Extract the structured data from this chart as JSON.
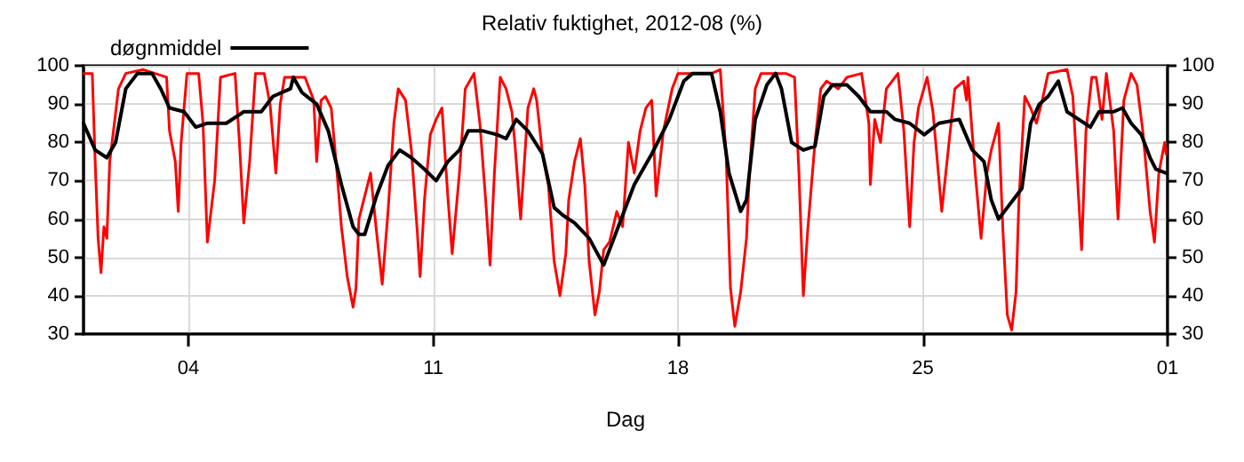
{
  "chart_data": {
    "type": "line",
    "title": "Relativ fuktighet, 2012-08 (%)",
    "xlabel": "Dag",
    "xlim": [
      "2012-08-01T00:00",
      "2012-09-01T00:00"
    ],
    "xticks": [
      {
        "value": "2012-08-04",
        "label": "04"
      },
      {
        "value": "2012-08-11",
        "label": "11"
      },
      {
        "value": "2012-08-18",
        "label": "18"
      },
      {
        "value": "2012-08-25",
        "label": "25"
      },
      {
        "value": "2012-09-01",
        "label": "01"
      }
    ],
    "ylim": [
      30,
      100
    ],
    "yticks": [
      30,
      40,
      50,
      60,
      70,
      80,
      90,
      100
    ],
    "y2lim": [
      30,
      100
    ],
    "y2ticks": [
      30,
      40,
      50,
      60,
      70,
      80,
      90,
      100
    ],
    "grid": true,
    "legend": "top left",
    "marker": "none",
    "line_style": "solid",
    "series": [
      {
        "color": "#ff0000",
        "x": [
          "2012-08-01T00:00",
          "2012-08-01T06:00",
          "2012-08-01T08:00",
          "2012-08-01T10:00",
          "2012-08-01T12:00",
          "2012-08-01T14:00",
          "2012-08-01T16:00",
          "2012-08-01T18:00",
          "2012-08-02T00:00",
          "2012-08-02T05:00",
          "2012-08-02T17:00",
          "2012-08-03T09:00",
          "2012-08-03T11:00",
          "2012-08-03T15:00",
          "2012-08-03T17:00",
          "2012-08-03T19:00",
          "2012-08-03T23:00",
          "2012-08-04T07:00",
          "2012-08-04T10:00",
          "2012-08-04T13:00",
          "2012-08-04T18:00",
          "2012-08-04T22:00",
          "2012-08-05T08:00",
          "2012-08-05T11:00",
          "2012-08-05T14:00",
          "2012-08-05T18:00",
          "2012-08-05T22:00",
          "2012-08-06T04:00",
          "2012-08-06T08:00",
          "2012-08-06T12:00",
          "2012-08-06T15:00",
          "2012-08-06T18:00",
          "2012-08-07T00:00",
          "2012-08-07T08:00",
          "2012-08-07T14:00",
          "2012-08-07T16:00",
          "2012-08-07T19:00",
          "2012-08-07T22:00",
          "2012-08-08T02:00",
          "2012-08-08T06:00",
          "2012-08-08T09:00",
          "2012-08-08T13:00",
          "2012-08-08T17:00",
          "2012-08-08T19:00",
          "2012-08-08T21:00",
          "2012-08-09T01:00",
          "2012-08-09T05:00",
          "2012-08-09T09:00",
          "2012-08-09T13:00",
          "2012-08-09T17:00",
          "2012-08-09T21:00",
          "2012-08-10T00:00",
          "2012-08-10T05:00",
          "2012-08-10T09:00",
          "2012-08-10T13:00",
          "2012-08-10T15:00",
          "2012-08-10T18:00",
          "2012-08-10T22:00",
          "2012-08-11T02:00",
          "2012-08-11T06:00",
          "2012-08-11T10:00",
          "2012-08-11T13:00",
          "2012-08-11T18:00",
          "2012-08-11T22:00",
          "2012-08-12T04:00",
          "2012-08-12T08:00",
          "2012-08-12T12:00",
          "2012-08-12T15:00",
          "2012-08-12T18:00",
          "2012-08-12T22:00",
          "2012-08-13T02:00",
          "2012-08-13T06:00",
          "2012-08-13T08:00",
          "2012-08-13T12:00",
          "2012-08-13T17:00",
          "2012-08-13T21:00",
          "2012-08-13T23:00",
          "2012-08-14T03:00",
          "2012-08-14T07:00",
          "2012-08-14T11:00",
          "2012-08-14T15:00",
          "2012-08-14T19:00",
          "2012-08-14T21:00",
          "2012-08-15T01:00",
          "2012-08-15T05:00",
          "2012-08-15T08:00",
          "2012-08-15T11:00",
          "2012-08-15T15:00",
          "2012-08-15T18:00",
          "2012-08-15T21:00",
          "2012-08-16T01:00",
          "2012-08-16T06:00",
          "2012-08-16T10:00",
          "2012-08-16T14:00",
          "2012-08-16T18:00",
          "2012-08-16T22:00",
          "2012-08-17T02:00",
          "2012-08-17T06:00",
          "2012-08-17T09:00",
          "2012-08-17T14:00",
          "2012-08-17T20:00",
          "2012-08-18T00:00",
          "2012-08-18T10:00",
          "2012-08-18T23:00",
          "2012-08-19T05:00",
          "2012-08-19T09:00",
          "2012-08-19T12:00",
          "2012-08-19T15:00",
          "2012-08-19T19:00",
          "2012-08-19T23:00",
          "2012-08-20T01:00",
          "2012-08-20T05:00",
          "2012-08-20T09:00",
          "2012-08-20T18:00",
          "2012-08-21T02:00",
          "2012-08-21T08:00",
          "2012-08-21T11:00",
          "2012-08-21T14:00",
          "2012-08-21T17:00",
          "2012-08-21T22:00",
          "2012-08-22T02:00",
          "2012-08-22T06:00",
          "2012-08-22T14:00",
          "2012-08-22T20:00",
          "2012-08-23T06:00",
          "2012-08-23T11:00",
          "2012-08-23T12:00",
          "2012-08-23T15:00",
          "2012-08-23T19:00",
          "2012-08-23T23:00",
          "2012-08-24T07:00",
          "2012-08-24T11:00",
          "2012-08-24T15:00",
          "2012-08-24T18:00",
          "2012-08-24T21:00",
          "2012-08-25T03:00",
          "2012-08-25T07:00",
          "2012-08-25T13:00",
          "2012-08-25T18:00",
          "2012-08-25T22:00",
          "2012-08-26T04:00",
          "2012-08-26T06:00",
          "2012-08-26T07:00",
          "2012-08-26T12:00",
          "2012-08-26T16:00",
          "2012-08-26T20:00",
          "2012-08-26T23:00",
          "2012-08-27T04:00",
          "2012-08-27T07:00",
          "2012-08-27T10:00",
          "2012-08-27T13:00",
          "2012-08-27T16:00",
          "2012-08-27T18:00",
          "2012-08-27T22:00",
          "2012-08-28T02:00",
          "2012-08-28T06:00",
          "2012-08-28T10:00",
          "2012-08-28T14:00",
          "2012-08-29T03:00",
          "2012-08-29T07:00",
          "2012-08-29T11:00",
          "2012-08-29T13:00",
          "2012-08-29T16:00",
          "2012-08-29T20:00",
          "2012-08-29T23:00",
          "2012-08-30T03:00",
          "2012-08-30T06:00",
          "2012-08-30T11:00",
          "2012-08-30T14:00",
          "2012-08-30T18:00",
          "2012-08-30T23:00",
          "2012-08-31T03:00",
          "2012-08-31T07:00",
          "2012-08-31T12:00",
          "2012-08-31T15:00",
          "2012-08-31T18:00",
          "2012-08-31T22:00",
          "2012-08-31T23:00"
        ],
        "values": [
          98,
          98,
          75,
          55,
          46,
          58,
          55,
          75,
          94,
          98,
          99,
          97,
          83,
          75,
          62,
          80,
          98,
          98,
          85,
          54,
          70,
          97,
          98,
          80,
          59,
          75,
          98,
          98,
          90,
          72,
          90,
          97,
          97,
          97,
          91,
          75,
          91,
          92,
          89,
          72,
          58,
          45,
          37,
          42,
          60,
          66,
          72,
          57,
          43,
          62,
          85,
          94,
          91,
          78,
          57,
          45,
          65,
          82,
          86,
          89,
          66,
          51,
          72,
          94,
          98,
          85,
          65,
          48,
          72,
          97,
          94,
          88,
          80,
          60,
          89,
          94,
          91,
          77,
          69,
          49,
          40,
          51,
          65,
          75,
          81,
          69,
          49,
          35,
          41,
          52,
          54,
          62,
          58,
          80,
          72,
          83,
          89,
          91,
          66,
          83,
          94,
          98,
          98,
          98,
          99,
          77,
          42,
          32,
          41,
          55,
          72,
          94,
          98,
          98,
          98,
          97,
          72,
          40,
          57,
          80,
          94,
          96,
          94,
          97,
          98,
          85,
          69,
          86,
          80,
          94,
          98,
          83,
          58,
          80,
          89,
          97,
          88,
          62,
          80,
          94,
          96,
          91,
          97,
          72,
          55,
          72,
          78,
          85,
          57,
          35,
          31,
          41,
          65,
          92,
          89,
          85,
          91,
          98,
          99,
          92,
          65,
          52,
          83,
          97,
          97,
          86,
          98,
          83,
          60,
          91,
          98,
          95,
          83,
          62,
          54,
          72,
          80,
          77
        ]
      },
      {
        "name": "døgnmiddel",
        "color": "#000000",
        "x": [
          "2012-08-01T00:00",
          "2012-08-01T08:00",
          "2012-08-01T16:00",
          "2012-08-01T22:00",
          "2012-08-02T05:00",
          "2012-08-02T13:00",
          "2012-08-02T23:00",
          "2012-08-03T05:00",
          "2012-08-03T11:00",
          "2012-08-03T21:00",
          "2012-08-04T05:00",
          "2012-08-04T13:00",
          "2012-08-05T02:00",
          "2012-08-05T14:00",
          "2012-08-06T02:00",
          "2012-08-06T10:00",
          "2012-08-06T22:00",
          "2012-08-07T00:00",
          "2012-08-07T06:00",
          "2012-08-07T16:00",
          "2012-08-08T00:00",
          "2012-08-08T09:00",
          "2012-08-08T17:00",
          "2012-08-08T21:00",
          "2012-08-09T01:00",
          "2012-08-09T09:00",
          "2012-08-09T17:00",
          "2012-08-10T01:00",
          "2012-08-10T09:00",
          "2012-08-10T18:00",
          "2012-08-11T02:00",
          "2012-08-11T10:00",
          "2012-08-11T18:00",
          "2012-08-12T00:00",
          "2012-08-12T10:00",
          "2012-08-12T20:00",
          "2012-08-13T02:00",
          "2012-08-13T09:00",
          "2012-08-13T17:00",
          "2012-08-14T03:00",
          "2012-08-14T11:00",
          "2012-08-14T17:00",
          "2012-08-15T01:00",
          "2012-08-15T11:00",
          "2012-08-15T21:00",
          "2012-08-16T06:00",
          "2012-08-16T18:00",
          "2012-08-17T06:00",
          "2012-08-17T18:00",
          "2012-08-18T04:00",
          "2012-08-18T10:00",
          "2012-08-18T23:00",
          "2012-08-19T05:00",
          "2012-08-19T11:00",
          "2012-08-19T19:00",
          "2012-08-19T23:00",
          "2012-08-20T05:00",
          "2012-08-20T13:00",
          "2012-08-20T19:00",
          "2012-08-20T23:00",
          "2012-08-21T06:00",
          "2012-08-21T14:00",
          "2012-08-21T22:00",
          "2012-08-22T04:00",
          "2012-08-22T10:00",
          "2012-08-22T20:00",
          "2012-08-23T04:00",
          "2012-08-23T12:00",
          "2012-08-23T23:00",
          "2012-08-24T05:00",
          "2012-08-24T15:00",
          "2012-08-25T01:00",
          "2012-08-25T11:00",
          "2012-08-26T01:00",
          "2012-08-26T10:00",
          "2012-08-26T18:00",
          "2012-08-26T23:00",
          "2012-08-27T04:00",
          "2012-08-27T10:00",
          "2012-08-27T16:00",
          "2012-08-27T20:00",
          "2012-08-28T02:00",
          "2012-08-28T08:00",
          "2012-08-28T14:00",
          "2012-08-28T21:00",
          "2012-08-29T03:00",
          "2012-08-29T11:00",
          "2012-08-29T19:00",
          "2012-08-30T01:00",
          "2012-08-30T11:00",
          "2012-08-30T17:00",
          "2012-08-30T23:00",
          "2012-08-31T06:00",
          "2012-08-31T12:00",
          "2012-08-31T16:00",
          "2012-08-31T23:00"
        ],
        "values": [
          85,
          78,
          76,
          80,
          94,
          98,
          98,
          94,
          89,
          88,
          84,
          85,
          85,
          88,
          88,
          92,
          94,
          97,
          93,
          90,
          83,
          69,
          58,
          56,
          56,
          66,
          74,
          78,
          76,
          73,
          70,
          75,
          78,
          83,
          83,
          82,
          81,
          86,
          83,
          77,
          63,
          61,
          59,
          55,
          48,
          57,
          69,
          77,
          86,
          96,
          98,
          98,
          88,
          72,
          62,
          65,
          86,
          95,
          98,
          94,
          80,
          78,
          79,
          92,
          95,
          95,
          92,
          88,
          88,
          86,
          85,
          82,
          85,
          86,
          78,
          75,
          65,
          60,
          63,
          66,
          68,
          85,
          90,
          92,
          96,
          88,
          86,
          84,
          88,
          88,
          89,
          85,
          82,
          76,
          73,
          72
        ]
      }
    ]
  }
}
